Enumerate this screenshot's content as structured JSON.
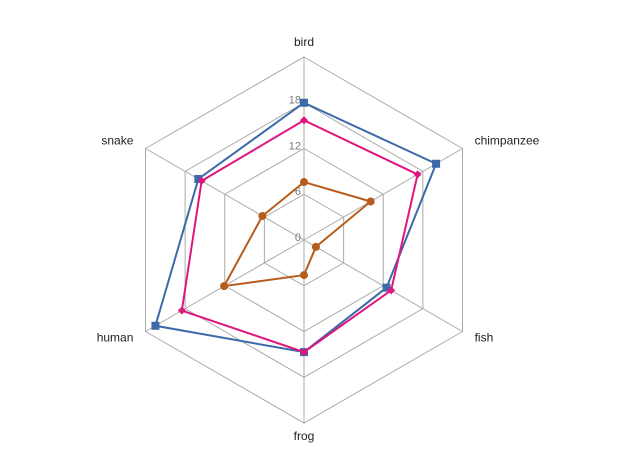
{
  "chart_data": {
    "type": "radar",
    "categories": [
      "bird",
      "chimpanzee",
      "fish",
      "frog",
      "human",
      "snake"
    ],
    "ylim": [
      0,
      24
    ],
    "yticks": [
      0,
      6,
      12,
      18
    ],
    "series": [
      {
        "color": "#3a6aa8",
        "marker": "square",
        "values": [
          18,
          20,
          12.5,
          14.7,
          22.5,
          16
        ]
      },
      {
        "color": "#e0157e",
        "marker": "diamond",
        "values": [
          15.7,
          17.2,
          13.2,
          14.7,
          18.5,
          15.5
        ]
      },
      {
        "color": "#b85c1c",
        "marker": "circle",
        "values": [
          7.6,
          10.1,
          1.8,
          4.6,
          12.1,
          6.3
        ]
      }
    ]
  }
}
